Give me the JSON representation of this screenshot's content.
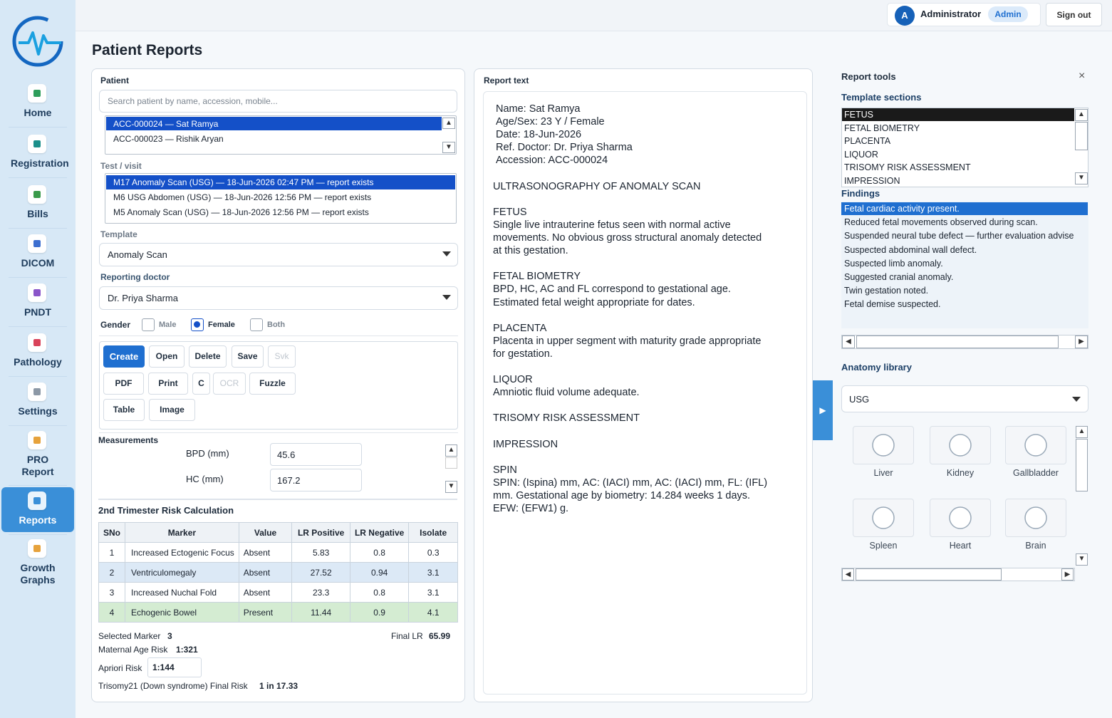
{
  "sidebar": {
    "items": [
      "Home",
      "Registration",
      "Bills",
      "DICOM",
      "PNDT",
      "Pathology",
      "Settings",
      "PRO Report",
      "Reports",
      "Growth Graphs"
    ],
    "active": "Reports"
  },
  "header": {
    "avatar": "A",
    "user": "Administrator",
    "role": "Admin",
    "sign_out": "Sign out"
  },
  "page_title": "Patient Reports",
  "patient": {
    "label": "Patient",
    "search_placeholder": "Search patient by name, accession, mobile...",
    "list": [
      "ACC-000024 — Sat Ramya",
      "ACC-000023 — Rishik Aryan"
    ]
  },
  "visit": {
    "label": "Test / visit",
    "list": [
      "M17 Anomaly Scan (USG) — 18-Jun-2026 02:47 PM — report exists",
      "M6 USG Abdomen (USG) — 18-Jun-2026 12:56 PM — report exists",
      "M5 Anomaly Scan (USG) — 18-Jun-2026 12:56 PM — report exists"
    ]
  },
  "template": {
    "label": "Template",
    "value": "Anomaly Scan"
  },
  "doctor": {
    "label": "Reporting doctor",
    "value": "Dr. Priya Sharma"
  },
  "gender": {
    "label": "Gender",
    "options": [
      "Male",
      "Female",
      "Both"
    ],
    "selected": "Female"
  },
  "buttons": [
    [
      "Create",
      "Open",
      "Delete",
      "Save",
      "Svk"
    ],
    [
      "PDF",
      "Print",
      "C",
      "OCR",
      "Fuzzle"
    ],
    [
      "Table",
      "Image"
    ]
  ],
  "measurements": {
    "label": "Measurements",
    "items": [
      {
        "name": "BPD (mm)",
        "value": 45.6
      },
      {
        "name": "HC (mm)",
        "value": 167.2
      }
    ]
  },
  "risk": {
    "title": "2nd Trimester Risk Calculation",
    "columns": [
      "SNo",
      "Marker",
      "Value",
      "LR Positive",
      "LR Negative",
      "Isolate"
    ],
    "rows": [
      [
        1,
        "Increased Ectogenic Focus",
        "Absent",
        5.83,
        0.8,
        0.3
      ],
      [
        2,
        "Ventriculomegaly",
        "Absent",
        27.52,
        0.94,
        3.1
      ],
      [
        3,
        "Increased Nuchal Fold",
        "Absent",
        23.3,
        0.8,
        3.1
      ],
      [
        4,
        "Echogenic Bowel",
        "Present",
        11.44,
        0.9,
        4.1
      ]
    ],
    "selected_marker_label": "Selected Marker",
    "selected_marker": 3,
    "final_lr_label": "Final LR",
    "final_lr": 65.99,
    "maternal_age_risk_label": "Maternal Age Risk",
    "maternal_age_risk": "1:321",
    "apriori_label": "Apriori Risk",
    "apriori": "1:144",
    "final_risk_label": "Trisomy21 (Down syndrome) Final Risk",
    "final_risk": "1 in 17.33"
  },
  "report": {
    "label": "Report text",
    "header": [
      "Name: Sat Ramya",
      "Age/Sex: 23 Y / Female",
      "Date: 18-Jun-2026",
      "Ref. Doctor: Dr. Priya Sharma",
      "Accession: ACC-000024"
    ],
    "title": "ULTRASONOGRAPHY OF ANOMALY SCAN",
    "sections": [
      {
        "heading": "FETUS",
        "lines": [
          "Single live intrauterine fetus seen with normal active",
          "movements. No obvious gross structural anomaly detected",
          "at this gestation."
        ]
      },
      {
        "heading": "FETAL BIOMETRY",
        "lines": [
          "BPD, HC, AC and FL correspond to gestational age.",
          "Estimated fetal weight appropriate for dates."
        ]
      },
      {
        "heading": "PLACENTA",
        "lines": [
          "Placenta in upper segment with maturity grade appropriate",
          "for gestation."
        ]
      },
      {
        "heading": "LIQUOR",
        "lines": [
          "Amniotic fluid volume adequate."
        ]
      },
      {
        "heading": "TRISOMY RISK ASSESSMENT",
        "lines": []
      },
      {
        "heading": "IMPRESSION",
        "lines": []
      },
      {
        "heading": "SPIN",
        "lines": [
          "SPIN: (Ispina) mm, AC: (IACI) mm, AC: (IACI) mm, FL: (IFL)",
          "mm. Gestational age by biometry: 14.284 weeks 1 days.",
          "EFW: (EFW1) g."
        ]
      }
    ]
  },
  "tools": {
    "title": "Report tools",
    "close": "×",
    "sections_label": "Template sections",
    "sections": [
      "FETUS",
      "FETAL BIOMETRY",
      "PLACENTA",
      "LIQUOR",
      "TRISOMY RISK ASSESSMENT",
      "IMPRESSION"
    ],
    "findings_label": "Findings",
    "findings": [
      "Fetal cardiac activity present.",
      "Reduced fetal movements observed during scan.",
      "Suspended neural tube defect — further evaluation advise",
      "Suspected abdominal wall defect.",
      "Suspected limb anomaly.",
      "Suggested cranial anomaly.",
      "Twin gestation noted.",
      "Fetal demise suspected."
    ],
    "anatomy_label": "Anatomy library",
    "anatomy_select": "USG",
    "anatomy": [
      "Liver",
      "Kidney",
      "Gallbladder",
      "Spleen",
      "Heart",
      "Brain"
    ]
  }
}
